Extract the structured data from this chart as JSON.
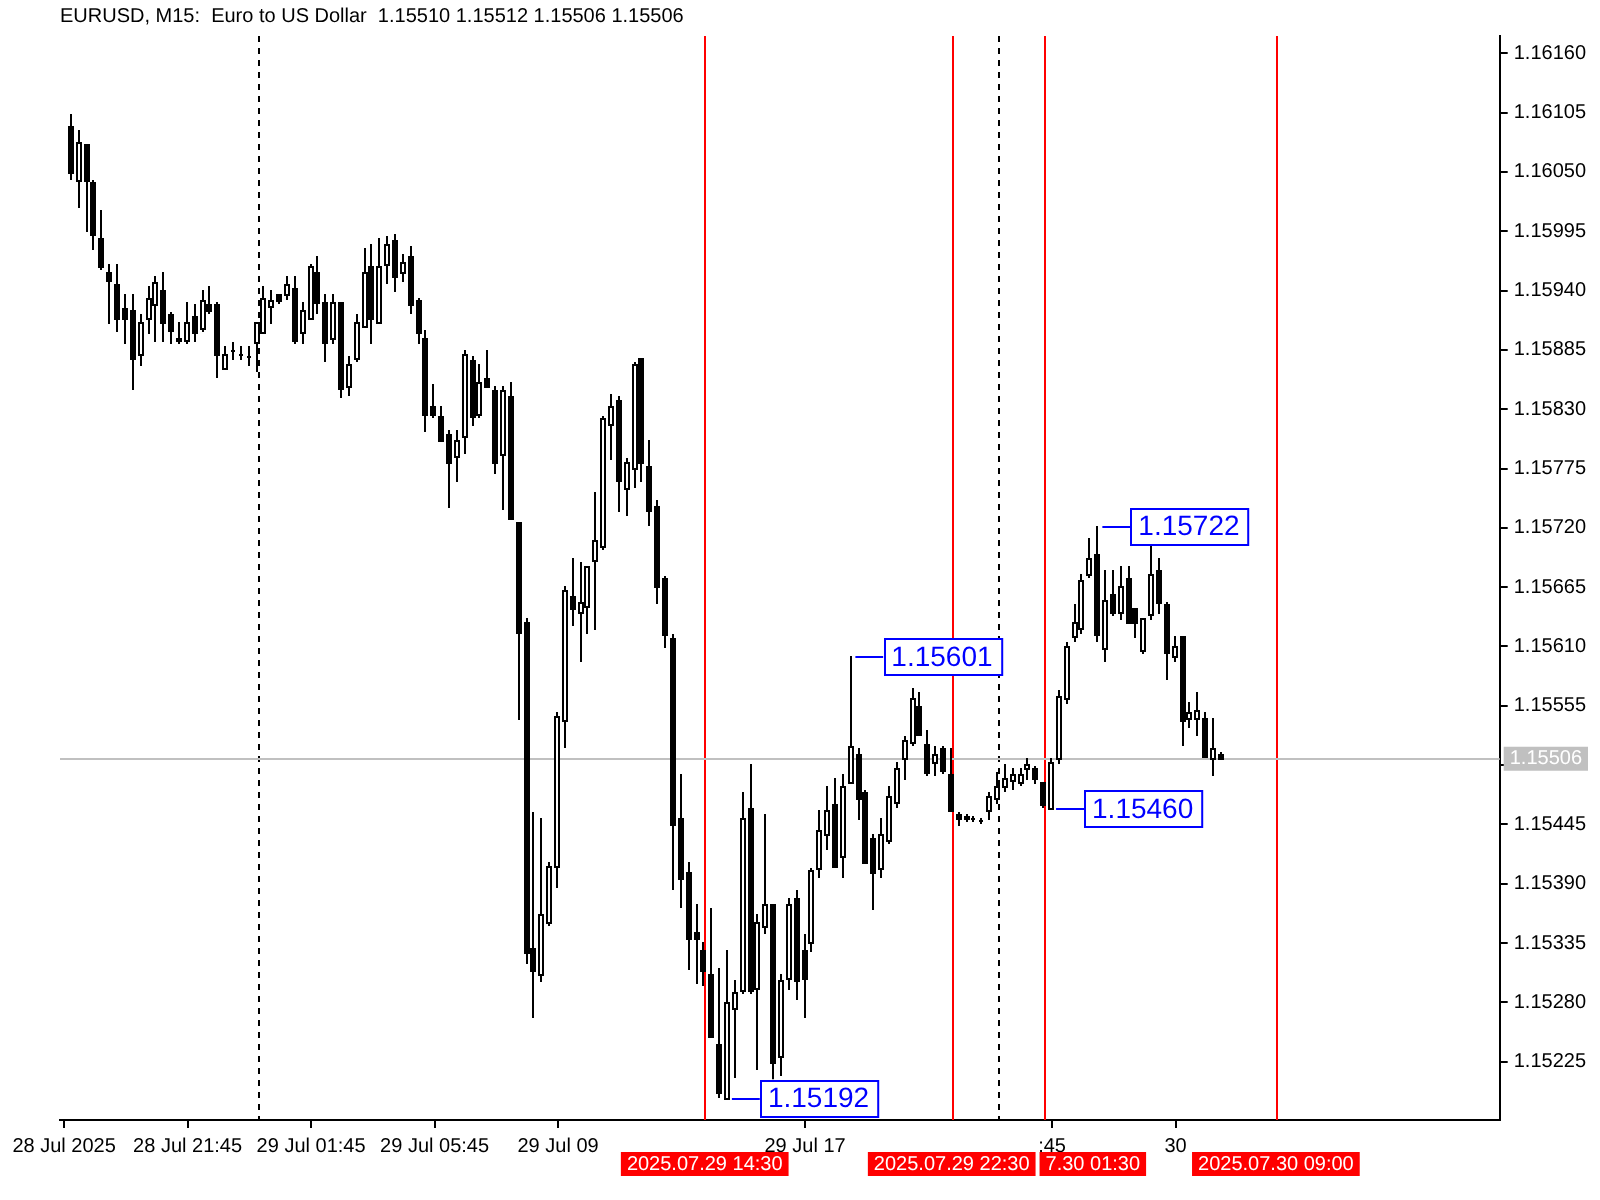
{
  "chart_data": {
    "type": "candlestick",
    "title": "EURUSD, M15:  Euro to US Dollar  1.15510 1.15512 1.15506 1.15506",
    "color": "#000000",
    "x": [
      "2025-07-28T18:00",
      "2025-07-28T18:15",
      "2025-07-28T18:30",
      "2025-07-28T18:45",
      "2025-07-28T19:00",
      "2025-07-28T19:15",
      "2025-07-28T19:30",
      "2025-07-28T19:45",
      "2025-07-28T20:00",
      "2025-07-28T20:15",
      "2025-07-28T20:30",
      "2025-07-28T20:45",
      "2025-07-28T21:00",
      "2025-07-28T21:15",
      "2025-07-28T21:30",
      "2025-07-28T21:45",
      "2025-07-28T22:00",
      "2025-07-28T22:15",
      "2025-07-28T22:30",
      "2025-07-28T22:45",
      "2025-07-28T23:00",
      "2025-07-28T23:15",
      "2025-07-28T23:30",
      "2025-07-28T23:45",
      "2025-07-29T00:00",
      "2025-07-29T00:15",
      "2025-07-29T00:30",
      "2025-07-29T00:45",
      "2025-07-29T01:00",
      "2025-07-29T01:15",
      "2025-07-29T01:30",
      "2025-07-29T01:45",
      "2025-07-29T02:00",
      "2025-07-29T02:15",
      "2025-07-29T02:30",
      "2025-07-29T02:45",
      "2025-07-29T03:00",
      "2025-07-29T03:15",
      "2025-07-29T03:30",
      "2025-07-29T03:45",
      "2025-07-29T04:00",
      "2025-07-29T04:15",
      "2025-07-29T04:30",
      "2025-07-29T04:45",
      "2025-07-29T05:00",
      "2025-07-29T05:15",
      "2025-07-29T05:30",
      "2025-07-29T05:45",
      "2025-07-29T06:00",
      "2025-07-29T06:15",
      "2025-07-29T06:30",
      "2025-07-29T06:45",
      "2025-07-29T07:00",
      "2025-07-29T07:15",
      "2025-07-29T07:30",
      "2025-07-29T07:45",
      "2025-07-29T08:00",
      "2025-07-29T08:15",
      "2025-07-29T08:30",
      "2025-07-29T08:45",
      "2025-07-29T09:00",
      "2025-07-29T09:15",
      "2025-07-29T09:30",
      "2025-07-29T09:45",
      "2025-07-29T10:00",
      "2025-07-29T10:15",
      "2025-07-29T10:30",
      "2025-07-29T10:45",
      "2025-07-29T11:00",
      "2025-07-29T11:15",
      "2025-07-29T11:30",
      "2025-07-29T11:45",
      "2025-07-29T12:00",
      "2025-07-29T12:15",
      "2025-07-29T12:30",
      "2025-07-29T12:45",
      "2025-07-29T13:00",
      "2025-07-29T13:15",
      "2025-07-29T13:30",
      "2025-07-29T13:45",
      "2025-07-29T14:00",
      "2025-07-29T14:15",
      "2025-07-29T14:30",
      "2025-07-29T14:45",
      "2025-07-29T15:00",
      "2025-07-29T15:15",
      "2025-07-29T15:30",
      "2025-07-29T15:45",
      "2025-07-29T16:00",
      "2025-07-29T16:15",
      "2025-07-29T16:30",
      "2025-07-29T16:45",
      "2025-07-29T17:00",
      "2025-07-29T17:15",
      "2025-07-29T17:30",
      "2025-07-29T17:45",
      "2025-07-29T18:00",
      "2025-07-29T18:15",
      "2025-07-29T18:30",
      "2025-07-29T18:45",
      "2025-07-29T19:00",
      "2025-07-29T19:15",
      "2025-07-29T19:30",
      "2025-07-29T19:45",
      "2025-07-29T20:00",
      "2025-07-29T20:15",
      "2025-07-29T20:30",
      "2025-07-29T20:45",
      "2025-07-29T21:00",
      "2025-07-29T21:15",
      "2025-07-29T21:30",
      "2025-07-29T21:45",
      "2025-07-29T22:00",
      "2025-07-29T22:15",
      "2025-07-29T22:30",
      "2025-07-29T22:45",
      "2025-07-29T23:00",
      "2025-07-29T23:15",
      "2025-07-29T23:30",
      "2025-07-29T23:45",
      "2025-07-30T00:00",
      "2025-07-30T00:15",
      "2025-07-30T00:30",
      "2025-07-30T00:45",
      "2025-07-30T01:00",
      "2025-07-30T01:15",
      "2025-07-30T01:30",
      "2025-07-30T01:45",
      "2025-07-30T02:00",
      "2025-07-30T02:15",
      "2025-07-30T02:30",
      "2025-07-30T02:45",
      "2025-07-30T03:00",
      "2025-07-30T03:15",
      "2025-07-30T03:30",
      "2025-07-30T03:45",
      "2025-07-30T04:00",
      "2025-07-30T04:15",
      "2025-07-30T04:30",
      "2025-07-30T04:45",
      "2025-07-30T05:00",
      "2025-07-30T05:15",
      "2025-07-30T05:30",
      "2025-07-30T05:45",
      "2025-07-30T06:00",
      "2025-07-30T06:15",
      "2025-07-30T06:30",
      "2025-07-30T06:45",
      "2025-07-30T07:00",
      "2025-07-30T07:15"
    ],
    "ohlc": [
      [
        1.16092,
        1.16103,
        1.16045,
        1.16049
      ],
      [
        1.16042,
        1.16089,
        1.16019,
        1.16077
      ],
      [
        1.16075,
        1.16075,
        1.15997,
        1.16042
      ],
      [
        1.1604,
        1.16042,
        1.15979,
        1.15993
      ],
      [
        1.15988,
        1.16014,
        1.1596,
        1.15962
      ],
      [
        1.15958,
        1.15964,
        1.15911,
        1.1595
      ],
      [
        1.15946,
        1.15964,
        1.15903,
        1.15915
      ],
      [
        1.15924,
        1.15937,
        1.15892,
        1.15915
      ],
      [
        1.15922,
        1.15937,
        1.15849,
        1.15877
      ],
      [
        1.15882,
        1.15918,
        1.15871,
        1.15911
      ],
      [
        1.15915,
        1.15944,
        1.15901,
        1.15934
      ],
      [
        1.15927,
        1.15953,
        1.15894,
        1.15948
      ],
      [
        1.15941,
        1.15958,
        1.15894,
        1.15911
      ],
      [
        1.15918,
        1.1592,
        1.15892,
        1.15903
      ],
      [
        1.15896,
        1.15911,
        1.15892,
        1.15894
      ],
      [
        1.15894,
        1.15929,
        1.15892,
        1.15911
      ],
      [
        1.15917,
        1.15927,
        1.15894,
        1.15901
      ],
      [
        1.15906,
        1.15941,
        1.15903,
        1.15932
      ],
      [
        1.15927,
        1.15944,
        1.1592,
        1.15922
      ],
      [
        1.15927,
        1.15929,
        1.15861,
        1.15882
      ],
      [
        1.15868,
        1.15889,
        1.15868,
        1.15882
      ],
      [
        1.15884,
        1.15892,
        1.15878,
        1.15885
      ],
      [
        1.15882,
        1.15889,
        1.15878,
        1.15882
      ],
      [
        1.1588,
        1.15889,
        1.15871,
        1.1588
      ],
      [
        1.15892,
        1.15911,
        1.15866,
        1.15911
      ],
      [
        1.15901,
        1.15944,
        1.15901,
        1.15934
      ],
      [
        1.15925,
        1.15941,
        1.15911,
        1.15932
      ],
      [
        1.15936,
        1.15937,
        1.1593,
        1.15932
      ],
      [
        1.15936,
        1.15953,
        1.15934,
        1.15946
      ],
      [
        1.15943,
        1.15953,
        1.15892,
        1.15894
      ],
      [
        1.15901,
        1.15929,
        1.15892,
        1.15922
      ],
      [
        1.15915,
        1.15964,
        1.15915,
        1.15962
      ],
      [
        1.15958,
        1.15972,
        1.1592,
        1.1593
      ],
      [
        1.15929,
        1.15936,
        1.15875,
        1.15892
      ],
      [
        1.15896,
        1.15936,
        1.15892,
        1.1593
      ],
      [
        1.15929,
        1.15929,
        1.15842,
        1.15849
      ],
      [
        1.15851,
        1.1588,
        1.15844,
        1.15871
      ],
      [
        1.15877,
        1.15918,
        1.15875,
        1.15911
      ],
      [
        1.15908,
        1.15979,
        1.15908,
        1.15957
      ],
      [
        1.15962,
        1.15984,
        1.15892,
        1.15915
      ],
      [
        1.15911,
        1.15988,
        1.15911,
        1.15962
      ],
      [
        1.15965,
        1.15991,
        1.15948,
        1.15984
      ],
      [
        1.15986,
        1.15993,
        1.15941,
        1.15953
      ],
      [
        1.15957,
        1.15974,
        1.1595,
        1.15967
      ],
      [
        1.15972,
        1.15981,
        1.1592,
        1.15927
      ],
      [
        1.15932,
        1.15934,
        1.15892,
        1.15901
      ],
      [
        1.15896,
        1.15903,
        1.1581,
        1.15826
      ],
      [
        1.15833,
        1.15854,
        1.15824,
        1.15826
      ],
      [
        1.15823,
        1.15833,
        1.15802,
        1.15802
      ],
      [
        1.15807,
        1.1581,
        1.15741,
        1.15781
      ],
      [
        1.15786,
        1.1581,
        1.15764,
        1.15802
      ],
      [
        1.15805,
        1.15884,
        1.1579,
        1.15882
      ],
      [
        1.15875,
        1.1588,
        1.15816,
        1.15823
      ],
      [
        1.15826,
        1.15871,
        1.15824,
        1.15856
      ],
      [
        1.15859,
        1.15884,
        1.15851,
        1.15851
      ],
      [
        1.15847,
        1.15851,
        1.15772,
        1.15781
      ],
      [
        1.15788,
        1.15851,
        1.15739,
        1.15847
      ],
      [
        1.15842,
        1.15856,
        1.1573,
        1.1573
      ],
      [
        1.15725,
        1.15725,
        1.15544,
        1.15624
      ],
      [
        1.15633,
        1.15637,
        1.15318,
        1.15327
      ],
      [
        1.1533,
        1.15457,
        1.15268,
        1.1531
      ],
      [
        1.15306,
        1.15451,
        1.15301,
        1.15362
      ],
      [
        1.15355,
        1.1541,
        1.15353,
        1.15407
      ],
      [
        1.15407,
        1.1555,
        1.15388,
        1.15546
      ],
      [
        1.15541,
        1.15666,
        1.15518,
        1.15663
      ],
      [
        1.15656,
        1.15692,
        1.1563,
        1.15645
      ],
      [
        1.15642,
        1.15689,
        1.15598,
        1.15651
      ],
      [
        1.15647,
        1.15685,
        1.15624,
        1.15685
      ],
      [
        1.1569,
        1.15753,
        1.15628,
        1.15708
      ],
      [
        1.15703,
        1.15824,
        1.15701,
        1.15821
      ],
      [
        1.15816,
        1.15845,
        1.15784,
        1.15833
      ],
      [
        1.15838,
        1.15842,
        1.15736,
        1.15764
      ],
      [
        1.15757,
        1.15784,
        1.15732,
        1.15781
      ],
      [
        1.15776,
        1.15873,
        1.15758,
        1.15871
      ],
      [
        1.15877,
        1.15878,
        1.15764,
        1.15781
      ],
      [
        1.15777,
        1.15802,
        1.15724,
        1.15737
      ],
      [
        1.15741,
        1.15746,
        1.15651,
        1.15666
      ],
      [
        1.15673,
        1.15675,
        1.1561,
        1.15621
      ],
      [
        1.15617,
        1.15621,
        1.15386,
        1.15445
      ],
      [
        1.15451,
        1.15492,
        1.15369,
        1.15395
      ],
      [
        1.154,
        1.1541,
        1.15311,
        1.15339
      ],
      [
        1.15346,
        1.15372,
        1.15299,
        1.15339
      ],
      [
        1.15329,
        1.15336,
        1.15298,
        1.1531
      ],
      [
        1.15306,
        1.15367,
        1.15249,
        1.15249
      ],
      [
        1.15242,
        1.15311,
        1.15193,
        1.15197
      ],
      [
        1.15192,
        1.15329,
        1.15192,
        1.1528
      ],
      [
        1.15275,
        1.15301,
        1.15211,
        1.15289
      ],
      [
        1.15292,
        1.15475,
        1.15289,
        1.15451
      ],
      [
        1.15461,
        1.15501,
        1.15289,
        1.15291
      ],
      [
        1.15294,
        1.15362,
        1.15219,
        1.15355
      ],
      [
        1.1535,
        1.15454,
        1.15346,
        1.15372
      ],
      [
        1.15371,
        1.15372,
        1.15207,
        1.15224
      ],
      [
        1.15231,
        1.15306,
        1.15214,
        1.15301
      ],
      [
        1.15303,
        1.15376,
        1.15294,
        1.15371
      ],
      [
        1.15376,
        1.15384,
        1.15285,
        1.15301
      ],
      [
        1.15329,
        1.15344,
        1.15268,
        1.15303
      ],
      [
        1.15336,
        1.15405,
        1.15329,
        1.15402
      ],
      [
        1.15405,
        1.15459,
        1.15398,
        1.1544
      ],
      [
        1.15437,
        1.1548,
        1.15423,
        1.15459
      ],
      [
        1.15464,
        1.15489,
        1.15407,
        1.15407
      ],
      [
        1.15416,
        1.15492,
        1.15397,
        1.1548
      ],
      [
        1.15485,
        1.15601,
        1.15484,
        1.15517
      ],
      [
        1.1551,
        1.15515,
        1.15451,
        1.1547
      ],
      [
        1.15475,
        1.15477,
        1.1541,
        1.1541
      ],
      [
        1.15433,
        1.15437,
        1.15367,
        1.154
      ],
      [
        1.15405,
        1.15451,
        1.15398,
        1.15437
      ],
      [
        1.1543,
        1.1548,
        1.15428,
        1.15471
      ],
      [
        1.15466,
        1.15503,
        1.15463,
        1.15497
      ],
      [
        1.15506,
        1.15527,
        1.15489,
        1.15524
      ],
      [
        1.15522,
        1.15572,
        1.1552,
        1.15562
      ],
      [
        1.15555,
        1.15567,
        1.15529,
        1.15529
      ],
      [
        1.1552,
        1.15532,
        1.15492,
        1.15494
      ],
      [
        1.15503,
        1.15518,
        1.15492,
        1.1551
      ],
      [
        1.15515,
        1.15518,
        1.15494,
        1.15496
      ],
      [
        1.15492,
        1.15515,
        1.15459,
        1.15459
      ],
      [
        1.15454,
        1.15457,
        1.15445,
        1.15451
      ],
      [
        1.15452,
        1.15454,
        1.15449,
        1.15451
      ],
      [
        1.15451,
        1.15452,
        1.15449,
        1.15451
      ],
      [
        1.15449,
        1.15451,
        1.15447,
        1.15449
      ],
      [
        1.15459,
        1.15475,
        1.15451,
        1.15471
      ],
      [
        1.1547,
        1.15494,
        1.15466,
        1.1548
      ],
      [
        1.1548,
        1.15501,
        1.15477,
        1.15489
      ],
      [
        1.15487,
        1.15497,
        1.15478,
        1.15492
      ],
      [
        1.15485,
        1.15497,
        1.15482,
        1.15491
      ],
      [
        1.15497,
        1.15506,
        1.15489,
        1.15501
      ],
      [
        1.15497,
        1.15499,
        1.15485,
        1.15489
      ],
      [
        1.15484,
        1.15485,
        1.15463,
        1.15464
      ],
      [
        1.1546,
        1.15506,
        1.1546,
        1.15503
      ],
      [
        1.15506,
        1.1557,
        1.15503,
        1.15564
      ],
      [
        1.15562,
        1.15614,
        1.15558,
        1.1561
      ],
      [
        1.15619,
        1.15649,
        1.15616,
        1.15633
      ],
      [
        1.15628,
        1.15677,
        1.15624,
        1.15671
      ],
      [
        1.15677,
        1.15711,
        1.15675,
        1.15692
      ],
      [
        1.15696,
        1.15722,
        1.15616,
        1.15621
      ],
      [
        1.15609,
        1.1568,
        1.15598,
        1.15654
      ],
      [
        1.15659,
        1.1568,
        1.1564,
        1.15642
      ],
      [
        1.15642,
        1.15684,
        1.15637,
        1.15666
      ],
      [
        1.15673,
        1.15684,
        1.15633,
        1.15633
      ],
      [
        1.15645,
        1.15645,
        1.15619,
        1.15633
      ],
      [
        1.15607,
        1.15637,
        1.15605,
        1.15637
      ],
      [
        1.1564,
        1.15703,
        1.15637,
        1.15677
      ],
      [
        1.1568,
        1.15692,
        1.15642,
        1.15651
      ],
      [
        1.15649,
        1.15651,
        1.15581,
        1.15605
      ],
      [
        1.15602,
        1.15619,
        1.15598,
        1.1561
      ],
      [
        1.15619,
        1.15619,
        1.1552,
        1.15541
      ],
      [
        1.15544,
        1.15558,
        1.15537,
        1.1555
      ],
      [
        1.15544,
        1.15567,
        1.15529,
        1.15551
      ],
      [
        1.15544,
        1.1555,
        1.15508,
        1.15508
      ],
      [
        1.15506,
        1.15544,
        1.15491,
        1.15515
      ],
      [
        1.1551,
        1.15512,
        1.15506,
        1.15506
      ]
    ],
    "xlim": [
      "2025-07-28T17:37",
      "2025-07-30T16:15"
    ],
    "xticks": [
      {
        "value": "2025-07-28T17:45",
        "label": "28 Jul 2025"
      },
      {
        "value": "2025-07-28T21:45",
        "label": "28 Jul 21:45"
      },
      {
        "value": "2025-07-29T01:45",
        "label": "29 Jul 01:45"
      },
      {
        "value": "2025-07-29T05:45",
        "label": "29 Jul 05:45"
      },
      {
        "value": "2025-07-29T09:45",
        "label": "29 Jul 09"
      },
      {
        "value": "2025-07-29T17:45",
        "label": "29 Jul 17"
      },
      {
        "value": "2025-07-30T01:45",
        "label": ":45"
      },
      {
        "value": "2025-07-30T05:45",
        "label": "30"
      }
    ],
    "ylim": [
      1.15171,
      1.16176
    ],
    "yticks": [
      1.15225,
      {
        "value": 1.1528,
        "label": "1.15280"
      },
      1.15335,
      {
        "value": 1.1539,
        "label": "1.15390"
      },
      1.15445,
      {
        "value": 1.155,
        "label": null
      },
      1.15555,
      {
        "value": 1.1561,
        "label": "1.15610"
      },
      1.15665,
      {
        "value": 1.1572,
        "label": "1.15720"
      },
      1.15775,
      {
        "value": 1.1583,
        "label": "1.15830"
      },
      1.15885,
      {
        "value": 1.1594,
        "label": "1.15940"
      },
      1.15995,
      {
        "value": 1.1605,
        "label": "1.16050"
      },
      1.16105,
      {
        "value": 1.1616,
        "label": "1.16160"
      }
    ],
    "ref_lines": [
      {
        "axis": "x",
        "value": "2025-07-29T00:00",
        "color": "#000000",
        "line_style": "dashed"
      },
      {
        "axis": "x",
        "value": "2025-07-30T00:00",
        "color": "#000000",
        "line_style": "dashed"
      },
      {
        "axis": "x",
        "value": "2025-07-29T14:30",
        "label": "2025.07.29 14:30",
        "color": "#ff0000"
      },
      {
        "axis": "x",
        "value": "2025-07-29T22:30",
        "label": "2025.07.29 22:30",
        "color": "#ff0000"
      },
      {
        "axis": "x",
        "value": "2025-07-30T01:30",
        "label": "7.30 01:30",
        "color": "#ff0000"
      },
      {
        "axis": "x",
        "value": "2025-07-30T09:00",
        "label": "2025.07.30 09:00",
        "color": "#ff0000"
      },
      {
        "axis": "y",
        "value": 1.15506,
        "label": "1.15506",
        "color": "#c0c0c0"
      }
    ],
    "annotations": [
      {
        "text": "1.15601",
        "x": "2025-07-29T19:15",
        "y": 1.15601
      },
      {
        "text": "1.15722",
        "x": "2025-07-30T03:15",
        "y": 1.15722
      },
      {
        "text": "1.15460",
        "x": "2025-07-30T01:45",
        "y": 1.1546
      },
      {
        "text": "1.15192",
        "x": "2025-07-29T15:15",
        "y": 1.15192
      }
    ]
  }
}
